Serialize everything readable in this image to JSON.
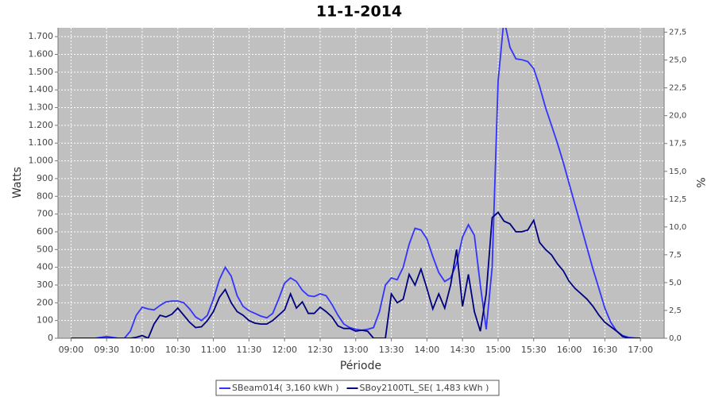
{
  "chart_data": {
    "type": "line",
    "title": "11-1-2014",
    "x_label": "Période",
    "y_label": "Watts",
    "y2_label": "%",
    "x": [
      540,
      545,
      550,
      555,
      560,
      565,
      570,
      575,
      580,
      585,
      590,
      595,
      600,
      605,
      610,
      615,
      620,
      625,
      630,
      635,
      640,
      645,
      650,
      655,
      660,
      665,
      670,
      675,
      680,
      685,
      690,
      695,
      700,
      705,
      710,
      715,
      720,
      725,
      730,
      735,
      740,
      745,
      750,
      755,
      760,
      765,
      770,
      775,
      780,
      785,
      790,
      795,
      800,
      805,
      810,
      815,
      820,
      825,
      830,
      835,
      840,
      845,
      850,
      855,
      860,
      865,
      870,
      875,
      880,
      885,
      890,
      895,
      900,
      905,
      910,
      915,
      920,
      925,
      930,
      935,
      940,
      945,
      950,
      955,
      960,
      965,
      970,
      975,
      980,
      985,
      990,
      995,
      1000,
      1005,
      1010,
      1015,
      1020
    ],
    "series": [
      {
        "name": "SBeam014( 3,160 kWh )",
        "color": "#3333ff",
        "values": [
          0,
          0,
          0,
          0,
          0,
          5,
          10,
          5,
          0,
          0,
          40,
          130,
          175,
          165,
          160,
          185,
          205,
          210,
          210,
          200,
          165,
          120,
          100,
          130,
          220,
          330,
          400,
          350,
          240,
          180,
          155,
          140,
          125,
          115,
          140,
          220,
          310,
          340,
          320,
          270,
          240,
          235,
          250,
          240,
          190,
          130,
          80,
          60,
          50,
          45,
          50,
          60,
          150,
          300,
          340,
          330,
          400,
          530,
          620,
          610,
          560,
          460,
          370,
          320,
          340,
          420,
          570,
          640,
          580,
          300,
          50,
          400,
          1450,
          1800,
          1640,
          1575,
          1570,
          1560,
          1520,
          1420,
          1300,
          1200,
          1100,
          990,
          870,
          750,
          630,
          510,
          390,
          280,
          170,
          90,
          40,
          15,
          5,
          2,
          0
        ]
      },
      {
        "name": "SBoy2100TL_SE( 1,483 kWh )",
        "color": "#000080",
        "values": [
          0,
          0,
          0,
          0,
          0,
          0,
          0,
          0,
          0,
          0,
          0,
          5,
          15,
          0,
          80,
          130,
          120,
          135,
          170,
          130,
          90,
          60,
          65,
          100,
          150,
          230,
          275,
          200,
          150,
          130,
          100,
          85,
          80,
          80,
          100,
          130,
          160,
          250,
          170,
          205,
          140,
          140,
          175,
          150,
          120,
          70,
          55,
          55,
          40,
          45,
          40,
          0,
          0,
          0,
          250,
          200,
          220,
          360,
          300,
          390,
          280,
          165,
          250,
          170,
          300,
          500,
          180,
          360,
          150,
          40,
          250,
          680,
          710,
          660,
          645,
          600,
          600,
          610,
          665,
          540,
          500,
          470,
          420,
          380,
          320,
          280,
          250,
          220,
          180,
          130,
          90,
          65,
          40,
          10,
          0,
          0,
          0
        ]
      }
    ],
    "xlim": [
      529,
      1040
    ],
    "xticks": [
      {
        "value": 540,
        "label": "09:00"
      },
      {
        "value": 570,
        "label": "09:30"
      },
      {
        "value": 600,
        "label": "10:00"
      },
      {
        "value": 630,
        "label": "10:30"
      },
      {
        "value": 660,
        "label": "11:00"
      },
      {
        "value": 690,
        "label": "11:30"
      },
      {
        "value": 720,
        "label": "12:00"
      },
      {
        "value": 750,
        "label": "12:30"
      },
      {
        "value": 780,
        "label": "13:00"
      },
      {
        "value": 810,
        "label": "13:30"
      },
      {
        "value": 840,
        "label": "14:00"
      },
      {
        "value": 870,
        "label": "14:30"
      },
      {
        "value": 900,
        "label": "15:00"
      },
      {
        "value": 930,
        "label": "15:30"
      },
      {
        "value": 960,
        "label": "16:00"
      },
      {
        "value": 990,
        "label": "16:30"
      },
      {
        "value": 1020,
        "label": "17:00"
      }
    ],
    "ylim": [
      0,
      1750
    ],
    "yticks": [
      0,
      100,
      200,
      300,
      400,
      500,
      600,
      700,
      800,
      900,
      {
        "value": 1000,
        "label": "1.000"
      },
      {
        "value": 1100,
        "label": "1.100"
      },
      {
        "value": 1200,
        "label": "1.200"
      },
      {
        "value": 1300,
        "label": "1.300"
      },
      {
        "value": 1400,
        "label": "1.400"
      },
      {
        "value": 1500,
        "label": "1.500"
      },
      {
        "value": 1600,
        "label": "1.600"
      },
      {
        "value": 1700,
        "label": "1.700"
      }
    ],
    "y2lim": [
      0,
      27.9
    ],
    "y2ticks": [
      {
        "value": 0,
        "label": "0,0"
      },
      {
        "value": 2.5,
        "label": "2,5"
      },
      {
        "value": 5,
        "label": "5,0"
      },
      {
        "value": 7.5,
        "label": "7,5"
      },
      {
        "value": 10,
        "label": "10,0"
      },
      {
        "value": 12.5,
        "label": "12,5"
      },
      {
        "value": 15,
        "label": "15,0"
      },
      {
        "value": 17.5,
        "label": "17,5"
      },
      {
        "value": 20,
        "label": "20,0"
      },
      {
        "value": 22.5,
        "label": "22,5"
      },
      {
        "value": 25,
        "label": "25,0"
      },
      {
        "value": 27.5,
        "label": "27,5"
      }
    ],
    "grid": true,
    "legend": "bottom"
  }
}
